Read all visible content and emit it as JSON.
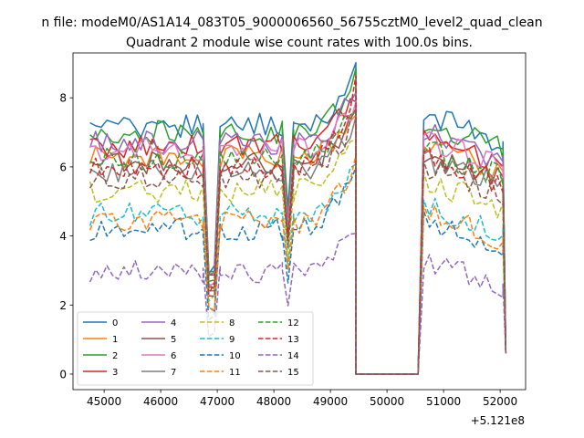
{
  "figure": {
    "suptitle": "n file: modeM0/AS1A14_083T05_9000006560_56755cztM0_level2_quad_clean",
    "offset_label": "+5.121e8"
  },
  "chart_data": {
    "type": "line",
    "title": "Quadrant 2 module wise count rates with 100.0s bins.",
    "xlabel": "",
    "ylabel": "",
    "xlim": [
      44450,
      52450
    ],
    "ylim": [
      -0.45,
      9.3
    ],
    "x_offset": 512100000,
    "xticks": [
      45000,
      46000,
      47000,
      48000,
      49000,
      50000,
      51000,
      52000
    ],
    "xtick_labels": [
      "45000",
      "46000",
      "47000",
      "48000",
      "49000",
      "50000",
      "51000",
      "52000"
    ],
    "yticks": [
      0,
      2,
      4,
      6,
      8
    ],
    "ytick_labels": [
      "0",
      "2",
      "4",
      "6",
      "8"
    ],
    "grid": false,
    "legend_position": "lower-left",
    "segments": [
      {
        "x_start": 44750,
        "x_end": 46750,
        "step": 100,
        "shape": "flat"
      },
      {
        "x_start": 46750,
        "x_end": 47050,
        "step": 100,
        "shape": "dip"
      },
      {
        "x_start": 47050,
        "x_end": 48150,
        "step": 100,
        "shape": "flat"
      },
      {
        "x_start": 48150,
        "x_end": 48350,
        "step": 100,
        "shape": "dip"
      },
      {
        "x_start": 48350,
        "x_end": 49450,
        "step": 100,
        "shape": "rising"
      },
      {
        "x_start": 49450,
        "x_end": 50550,
        "step": 100,
        "shape": "zero"
      },
      {
        "x_start": 50550,
        "x_end": 52050,
        "step": 100,
        "shape": "decaying"
      },
      {
        "x_start": 52050,
        "x_end": 52100,
        "step": 50,
        "shape": "drop"
      }
    ],
    "series": [
      {
        "name": "0",
        "color": "#1f77b4",
        "dash": "solid",
        "level": 7.2,
        "peak": 8.75
      },
      {
        "name": "1",
        "color": "#ff7f0e",
        "dash": "solid",
        "level": 6.3,
        "peak": 7.6
      },
      {
        "name": "2",
        "color": "#2ca02c",
        "dash": "solid",
        "level": 7.0,
        "peak": 8.6
      },
      {
        "name": "3",
        "color": "#d62728",
        "dash": "solid",
        "level": 6.6,
        "peak": 8.1
      },
      {
        "name": "4",
        "color": "#9467bd",
        "dash": "solid",
        "level": 6.7,
        "peak": 8.2
      },
      {
        "name": "5",
        "color": "#8c564b",
        "dash": "solid",
        "level": 6.1,
        "peak": 7.5
      },
      {
        "name": "6",
        "color": "#e377c2",
        "dash": "solid",
        "level": 6.5,
        "peak": 7.9
      },
      {
        "name": "7",
        "color": "#7f7f7f",
        "dash": "solid",
        "level": 5.9,
        "peak": 7.3
      },
      {
        "name": "8",
        "color": "#bcbd22",
        "dash": "dashed",
        "level": 5.3,
        "peak": 6.8
      },
      {
        "name": "9",
        "color": "#17becf",
        "dash": "dashed",
        "level": 4.6,
        "peak": 6.2
      },
      {
        "name": "10",
        "color": "#1f77b4",
        "dash": "dashed",
        "level": 4.2,
        "peak": 5.7
      },
      {
        "name": "11",
        "color": "#ff7f0e",
        "dash": "dashed",
        "level": 4.4,
        "peak": 6.0
      },
      {
        "name": "12",
        "color": "#2ca02c",
        "dash": "dashed",
        "level": 6.2,
        "peak": 7.7
      },
      {
        "name": "13",
        "color": "#d62728",
        "dash": "dashed",
        "level": 6.0,
        "peak": 8.3
      },
      {
        "name": "14",
        "color": "#9467bd",
        "dash": "dashed",
        "level": 3.0,
        "peak": 4.2
      },
      {
        "name": "15",
        "color": "#8c564b",
        "dash": "dashed",
        "level": 5.7,
        "peak": 7.4
      }
    ]
  }
}
